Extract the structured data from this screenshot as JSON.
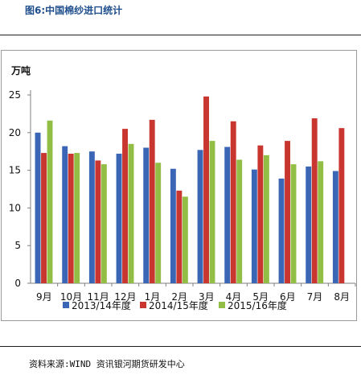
{
  "figure": {
    "title": "图6:中国棉纱进口统计",
    "source": "资料来源:WIND 资讯银河期货研发中心"
  },
  "chart_data": {
    "type": "bar",
    "unit_label": "万吨",
    "categories": [
      "9月",
      "10月",
      "11月",
      "12月",
      "1月",
      "2月",
      "3月",
      "4月",
      "5月",
      "6月",
      "7月",
      "8月"
    ],
    "series": [
      {
        "name": "2013/14年度",
        "color": "#3a66b5",
        "values": [
          20.0,
          18.2,
          17.5,
          17.2,
          18.0,
          15.2,
          17.7,
          18.1,
          15.1,
          13.9,
          15.5,
          14.9
        ]
      },
      {
        "name": "2014/15年度",
        "color": "#c8362f",
        "values": [
          17.3,
          17.2,
          16.3,
          20.5,
          21.7,
          12.3,
          24.8,
          21.5,
          18.3,
          18.9,
          21.9,
          20.6
        ]
      },
      {
        "name": "2015/16年度",
        "color": "#93be45",
        "values": [
          21.6,
          17.3,
          15.8,
          18.5,
          16.0,
          11.5,
          18.9,
          16.4,
          17.0,
          15.8,
          16.2,
          null
        ]
      }
    ],
    "ylim": [
      0,
      25
    ],
    "yticks": [
      0,
      5,
      10,
      15,
      20,
      25
    ],
    "grid": false,
    "legend_position": "bottom"
  }
}
